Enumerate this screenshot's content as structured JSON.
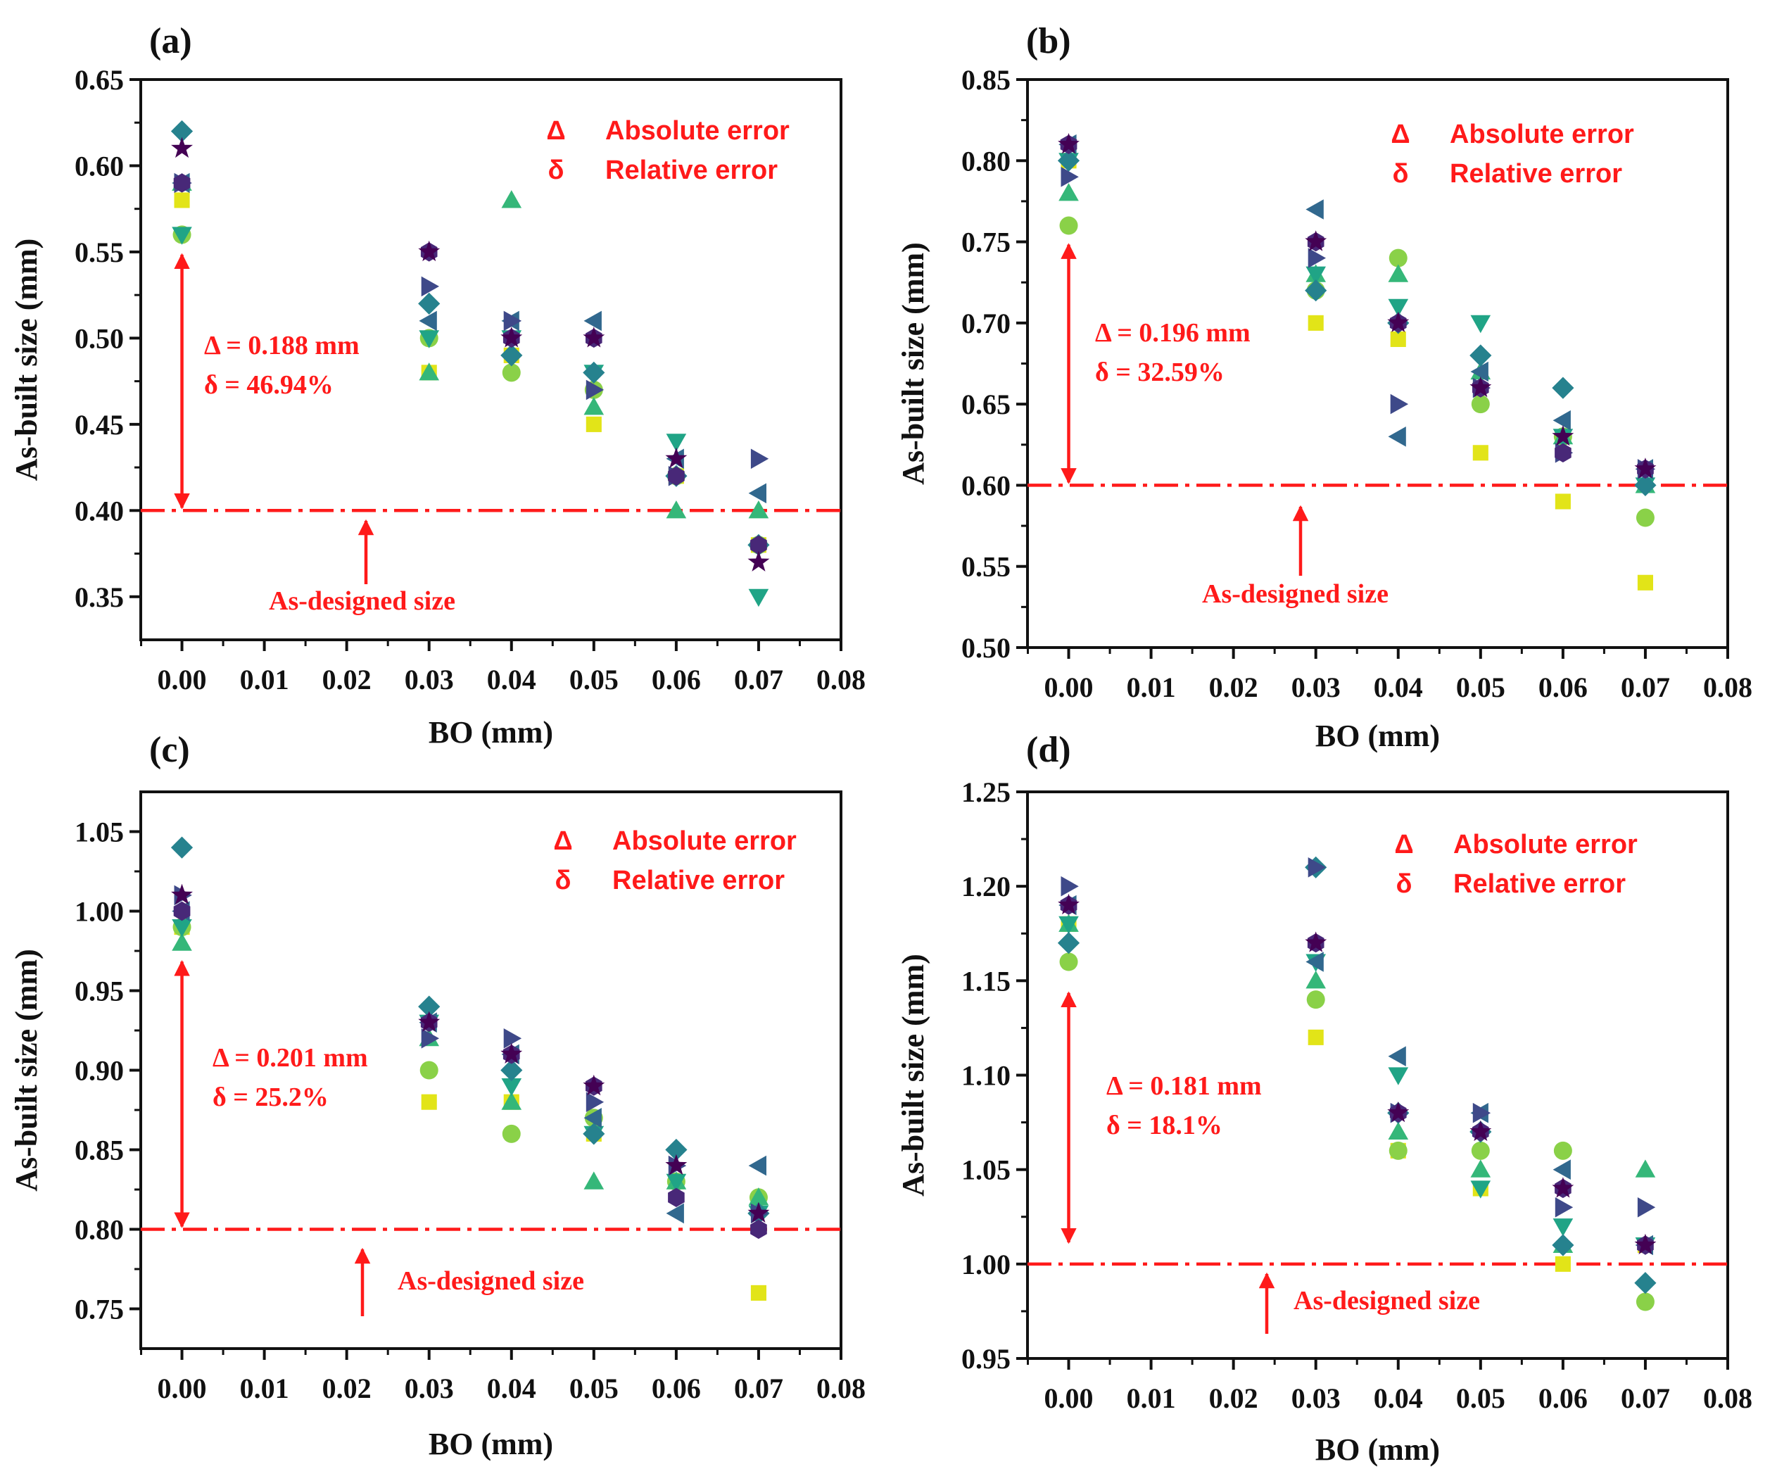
{
  "colors": {
    "axis": "#111111",
    "annotation": "#ff1a1a",
    "series": [
      "#e2e418",
      "#8ad148",
      "#35b779",
      "#20a486",
      "#1f9e89",
      "#26828e",
      "#31688e",
      "#3e4989",
      "#482878",
      "#440154"
    ]
  },
  "chart_data": [
    {
      "type": "scatter",
      "panel_label": "(a)",
      "xlabel": "BO (mm)",
      "ylabel": "As-built size (mm)",
      "xlim": [
        -0.005,
        0.08
      ],
      "ylim": [
        0.325,
        0.65
      ],
      "x_ticks": [
        "0.00",
        "0.01",
        "0.02",
        "0.03",
        "0.04",
        "0.05",
        "0.06",
        "0.07",
        "0.08"
      ],
      "y_ticks": [
        "0.35",
        "0.40",
        "0.45",
        "0.50",
        "0.55",
        "0.60",
        "0.65"
      ],
      "x": [
        0.0,
        0.03,
        0.04,
        0.05,
        0.06,
        0.07
      ],
      "designed_size": 0.4,
      "designed_label": "As-designed size",
      "legend": [
        {
          "symbol": "Δ",
          "label": "Absolute error"
        },
        {
          "symbol": "δ",
          "label": "Relative error"
        }
      ],
      "annotation": [
        "Δ = 0.188 mm",
        "δ = 46.94%"
      ],
      "error_range": [
        0.4,
        0.55
      ],
      "series": [
        {
          "marker": "square",
          "values": [
            0.58,
            0.48,
            0.49,
            0.45,
            0.42,
            0.38
          ]
        },
        {
          "marker": "circle",
          "values": [
            0.56,
            0.5,
            0.48,
            0.47,
            0.42,
            0.38
          ]
        },
        {
          "marker": "triangle-up",
          "values": [
            0.59,
            0.48,
            0.58,
            0.46,
            0.4,
            0.4
          ]
        },
        {
          "marker": "triangle-down",
          "values": [
            0.56,
            0.5,
            0.5,
            0.48,
            0.44,
            0.35
          ]
        },
        {
          "marker": "diamond",
          "values": [
            0.62,
            0.52,
            0.49,
            0.48,
            0.42,
            0.38
          ]
        },
        {
          "marker": "triangle-left",
          "values": [
            0.59,
            0.51,
            0.51,
            0.51,
            0.43,
            0.41
          ]
        },
        {
          "marker": "triangle-right",
          "values": [
            0.59,
            0.53,
            0.51,
            0.47,
            0.42,
            0.43
          ]
        },
        {
          "marker": "hexagon",
          "values": [
            0.59,
            0.55,
            0.5,
            0.5,
            0.42,
            0.38
          ]
        },
        {
          "marker": "star",
          "values": [
            0.61,
            0.55,
            0.5,
            0.5,
            0.43,
            0.37
          ]
        }
      ]
    },
    {
      "type": "scatter",
      "panel_label": "(b)",
      "xlabel": "BO (mm)",
      "ylabel": "As-built size (mm)",
      "xlim": [
        -0.005,
        0.08
      ],
      "ylim": [
        0.5,
        0.85
      ],
      "x_ticks": [
        "0.00",
        "0.01",
        "0.02",
        "0.03",
        "0.04",
        "0.05",
        "0.06",
        "0.07",
        "0.08"
      ],
      "y_ticks": [
        "0.50",
        "0.55",
        "0.60",
        "0.65",
        "0.70",
        "0.75",
        "0.80",
        "0.85"
      ],
      "x": [
        0.0,
        0.03,
        0.04,
        0.05,
        0.06,
        0.07
      ],
      "designed_size": 0.6,
      "designed_label": "As-designed size",
      "legend": [
        {
          "symbol": "Δ",
          "label": "Absolute error"
        },
        {
          "symbol": "δ",
          "label": "Relative error"
        }
      ],
      "annotation": [
        "Δ = 0.196 mm",
        "δ = 32.59%"
      ],
      "error_range": [
        0.6,
        0.75
      ],
      "series": [
        {
          "marker": "square",
          "values": [
            0.8,
            0.7,
            0.69,
            0.62,
            0.59,
            0.54
          ]
        },
        {
          "marker": "circle",
          "values": [
            0.76,
            0.72,
            0.74,
            0.65,
            0.63,
            0.58
          ]
        },
        {
          "marker": "triangle-up",
          "values": [
            0.78,
            0.73,
            0.73,
            0.67,
            0.63,
            0.6
          ]
        },
        {
          "marker": "triangle-down",
          "values": [
            0.8,
            0.73,
            0.71,
            0.7,
            0.63,
            0.6
          ]
        },
        {
          "marker": "diamond",
          "values": [
            0.8,
            0.72,
            0.7,
            0.68,
            0.66,
            0.6
          ]
        },
        {
          "marker": "triangle-left",
          "values": [
            0.81,
            0.77,
            0.63,
            0.67,
            0.64,
            0.61
          ]
        },
        {
          "marker": "triangle-right",
          "values": [
            0.79,
            0.74,
            0.65,
            0.66,
            0.62,
            0.61
          ]
        },
        {
          "marker": "hexagon",
          "values": [
            0.81,
            0.75,
            0.7,
            0.66,
            0.62,
            0.61
          ]
        },
        {
          "marker": "star",
          "values": [
            0.81,
            0.75,
            0.7,
            0.66,
            0.63,
            0.61
          ]
        }
      ]
    },
    {
      "type": "scatter",
      "panel_label": "(c)",
      "xlabel": "BO (mm)",
      "ylabel": "As-built size (mm)",
      "xlim": [
        -0.005,
        0.08
      ],
      "ylim": [
        0.725,
        1.075
      ],
      "x_ticks": [
        "0.00",
        "0.01",
        "0.02",
        "0.03",
        "0.04",
        "0.05",
        "0.06",
        "0.07",
        "0.08"
      ],
      "y_ticks": [
        "0.75",
        "0.80",
        "0.85",
        "0.90",
        "0.95",
        "1.00",
        "1.05"
      ],
      "x": [
        0.0,
        0.03,
        0.04,
        0.05,
        0.06,
        0.07
      ],
      "designed_size": 0.8,
      "designed_label": "As-designed size",
      "legend": [
        {
          "symbol": "Δ",
          "label": "Absolute error"
        },
        {
          "symbol": "δ",
          "label": "Relative error"
        }
      ],
      "annotation": [
        "Δ = 0.201 mm",
        "δ = 25.2%"
      ],
      "error_range": [
        0.8,
        0.97
      ],
      "series": [
        {
          "marker": "square",
          "values": [
            0.99,
            0.88,
            0.88,
            0.86,
            0.83,
            0.76
          ]
        },
        {
          "marker": "circle",
          "values": [
            0.99,
            0.9,
            0.86,
            0.87,
            0.83,
            0.82
          ]
        },
        {
          "marker": "triangle-up",
          "values": [
            0.98,
            0.92,
            0.88,
            0.83,
            0.83,
            0.82
          ]
        },
        {
          "marker": "triangle-down",
          "values": [
            0.99,
            0.93,
            0.89,
            0.86,
            0.83,
            0.81
          ]
        },
        {
          "marker": "diamond",
          "values": [
            1.04,
            0.94,
            0.9,
            0.86,
            0.85,
            0.81
          ]
        },
        {
          "marker": "triangle-left",
          "values": [
            1.0,
            0.93,
            0.91,
            0.87,
            0.81,
            0.84
          ]
        },
        {
          "marker": "triangle-right",
          "values": [
            1.01,
            0.92,
            0.92,
            0.88,
            0.84,
            0.81
          ]
        },
        {
          "marker": "hexagon",
          "values": [
            1.0,
            0.93,
            0.91,
            0.89,
            0.82,
            0.8
          ]
        },
        {
          "marker": "star",
          "values": [
            1.01,
            0.93,
            0.91,
            0.89,
            0.84,
            0.81
          ]
        }
      ]
    },
    {
      "type": "scatter",
      "panel_label": "(d)",
      "xlabel": "BO (mm)",
      "ylabel": "As-built size (mm)",
      "xlim": [
        -0.005,
        0.08
      ],
      "ylim": [
        0.95,
        1.25
      ],
      "x_ticks": [
        "0.00",
        "0.01",
        "0.02",
        "0.03",
        "0.04",
        "0.05",
        "0.06",
        "0.07",
        "0.08"
      ],
      "y_ticks": [
        "0.95",
        "1.00",
        "1.05",
        "1.10",
        "1.15",
        "1.20",
        "1.25"
      ],
      "x": [
        0.0,
        0.03,
        0.04,
        0.05,
        0.06,
        0.07
      ],
      "designed_size": 1.0,
      "designed_label": "As-designed size",
      "legend": [
        {
          "symbol": "Δ",
          "label": "Absolute error"
        },
        {
          "symbol": "δ",
          "label": "Relative error"
        }
      ],
      "annotation": [
        "Δ = 0.181 mm",
        "δ = 18.1%"
      ],
      "error_range": [
        1.01,
        1.145
      ],
      "series": [
        {
          "marker": "square",
          "values": [
            1.18,
            1.12,
            1.06,
            1.04,
            1.0,
            1.01
          ]
        },
        {
          "marker": "circle",
          "values": [
            1.16,
            1.14,
            1.06,
            1.06,
            1.06,
            0.98
          ]
        },
        {
          "marker": "triangle-up",
          "values": [
            1.18,
            1.15,
            1.07,
            1.05,
            1.01,
            1.05
          ]
        },
        {
          "marker": "triangle-down",
          "values": [
            1.18,
            1.16,
            1.1,
            1.04,
            1.02,
            1.01
          ]
        },
        {
          "marker": "diamond",
          "values": [
            1.17,
            1.21,
            1.08,
            1.07,
            1.01,
            0.99
          ]
        },
        {
          "marker": "triangle-left",
          "values": [
            1.19,
            1.16,
            1.11,
            1.08,
            1.05,
            1.01
          ]
        },
        {
          "marker": "triangle-right",
          "values": [
            1.2,
            1.21,
            1.08,
            1.08,
            1.03,
            1.03
          ]
        },
        {
          "marker": "hexagon",
          "values": [
            1.19,
            1.17,
            1.08,
            1.07,
            1.04,
            1.01
          ]
        },
        {
          "marker": "star",
          "values": [
            1.19,
            1.17,
            1.08,
            1.07,
            1.04,
            1.01
          ]
        }
      ]
    }
  ]
}
